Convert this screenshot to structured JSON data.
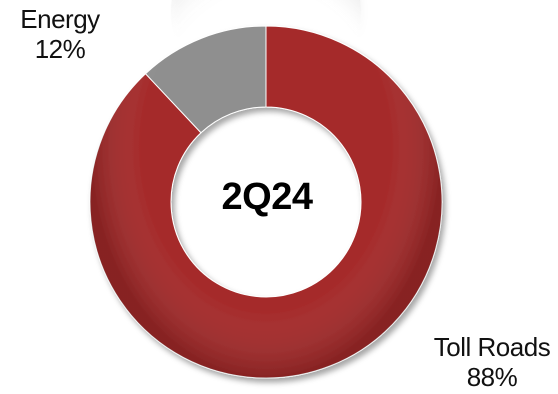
{
  "chart_data": {
    "type": "pie",
    "variant": "donut",
    "center_label": "2Q24",
    "categories": [
      "Toll Roads",
      "Energy"
    ],
    "values": [
      88,
      12
    ],
    "value_labels": [
      "88%",
      "12%"
    ],
    "colors": [
      "#a52a2a",
      "#8f8f8f"
    ],
    "legend": "none"
  }
}
